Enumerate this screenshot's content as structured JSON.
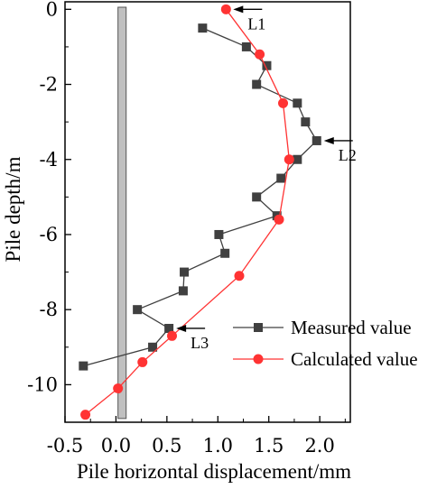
{
  "chart_data": {
    "type": "line",
    "xlabel": "Pile horizontal displacement/mm",
    "ylabel": "Pile depth/m",
    "xlim": [
      -0.5,
      2.3
    ],
    "ylim": [
      -11,
      0.2
    ],
    "xticks": [
      -0.5,
      0.0,
      0.5,
      1.0,
      1.5,
      2.0
    ],
    "xtick_labels": [
      "-0.5",
      "0.0",
      "0.5",
      "1.0",
      "1.5",
      "2.0"
    ],
    "yticks": [
      0,
      -2,
      -4,
      -6,
      -8,
      -10
    ],
    "ytick_labels": [
      "0",
      "-2",
      "-4",
      "-6",
      "-8",
      "-10"
    ],
    "grid": false,
    "legend_position": "bottom-right",
    "pile_column": {
      "x_range": [
        0.02,
        0.1
      ],
      "color": "#c0c0c0"
    },
    "series": [
      {
        "name": "Measured value",
        "marker": "square",
        "color": "#404040",
        "x": [
          0.85,
          1.28,
          1.48,
          1.38,
          1.78,
          1.86,
          1.97,
          1.78,
          1.62,
          1.38,
          1.58,
          1.01,
          1.07,
          0.67,
          0.66,
          0.21,
          0.52,
          0.36,
          -0.32
        ],
        "y": [
          -0.5,
          -1.0,
          -1.5,
          -2.0,
          -2.5,
          -3.0,
          -3.5,
          -4.0,
          -4.5,
          -5.0,
          -5.5,
          -6.0,
          -6.5,
          -7.0,
          -7.5,
          -8.0,
          -8.5,
          -9.0,
          -9.5
        ]
      },
      {
        "name": "Calculated value",
        "marker": "circle",
        "color": "#ff3333",
        "x": [
          1.08,
          1.41,
          1.64,
          1.7,
          1.6,
          1.21,
          0.55,
          0.26,
          0.02,
          -0.3
        ],
        "y": [
          0.0,
          -1.2,
          -2.5,
          -4.0,
          -5.6,
          -7.1,
          -8.7,
          -9.4,
          -10.1,
          -10.8
        ]
      }
    ],
    "annotations": [
      {
        "label": "L1",
        "x": 1.08,
        "y": 0.0,
        "arrow": "left"
      },
      {
        "label": "L2",
        "x": 1.97,
        "y": -3.5,
        "arrow": "left"
      },
      {
        "label": "L3",
        "x": 0.52,
        "y": -8.5,
        "arrow": "left"
      }
    ]
  }
}
